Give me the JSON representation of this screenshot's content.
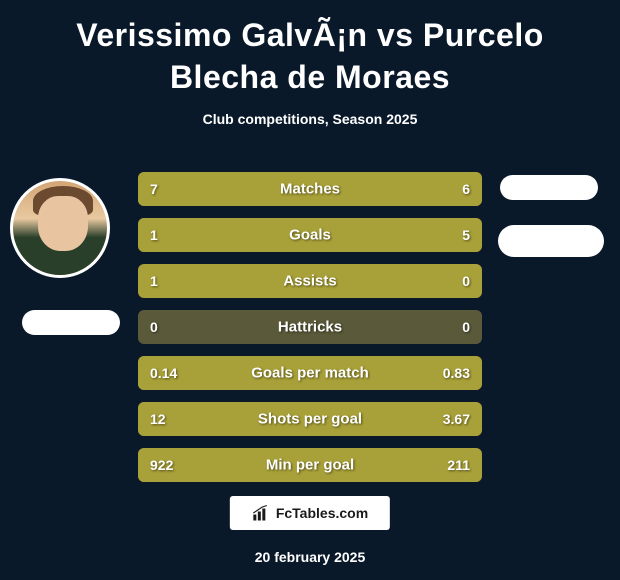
{
  "title": "Verissimo GalvÃ¡n vs Purcelo Blecha de Moraes",
  "subtitle": "Club competitions, Season 2025",
  "colors": {
    "background": "#0a1929",
    "bar_highlight": "#a8a038",
    "bar_base": "#5a5a3a",
    "text": "#ffffff",
    "badge_bg": "#ffffff",
    "badge_text": "#1a1a1a"
  },
  "stats": [
    {
      "label": "Matches",
      "left_value": "7",
      "right_value": "6",
      "left_width_pct": 53.8,
      "right_width_pct": 46.2,
      "full": true
    },
    {
      "label": "Goals",
      "left_value": "1",
      "right_value": "5",
      "left_width_pct": 16.7,
      "right_width_pct": 83.3,
      "full": true
    },
    {
      "label": "Assists",
      "left_value": "1",
      "right_value": "0",
      "left_width_pct": 100,
      "right_width_pct": 0,
      "full": false
    },
    {
      "label": "Hattricks",
      "left_value": "0",
      "right_value": "0",
      "left_width_pct": 0,
      "right_width_pct": 0,
      "full": false
    },
    {
      "label": "Goals per match",
      "left_value": "0.14",
      "right_value": "0.83",
      "left_width_pct": 14.4,
      "right_width_pct": 85.6,
      "full": true
    },
    {
      "label": "Shots per goal",
      "left_value": "12",
      "right_value": "3.67",
      "left_width_pct": 76.6,
      "right_width_pct": 23.4,
      "full": true
    },
    {
      "label": "Min per goal",
      "left_value": "922",
      "right_value": "211",
      "left_width_pct": 81.4,
      "right_width_pct": 18.6,
      "full": true
    }
  ],
  "footer": {
    "brand": "FcTables.com",
    "date": "20 february 2025"
  }
}
